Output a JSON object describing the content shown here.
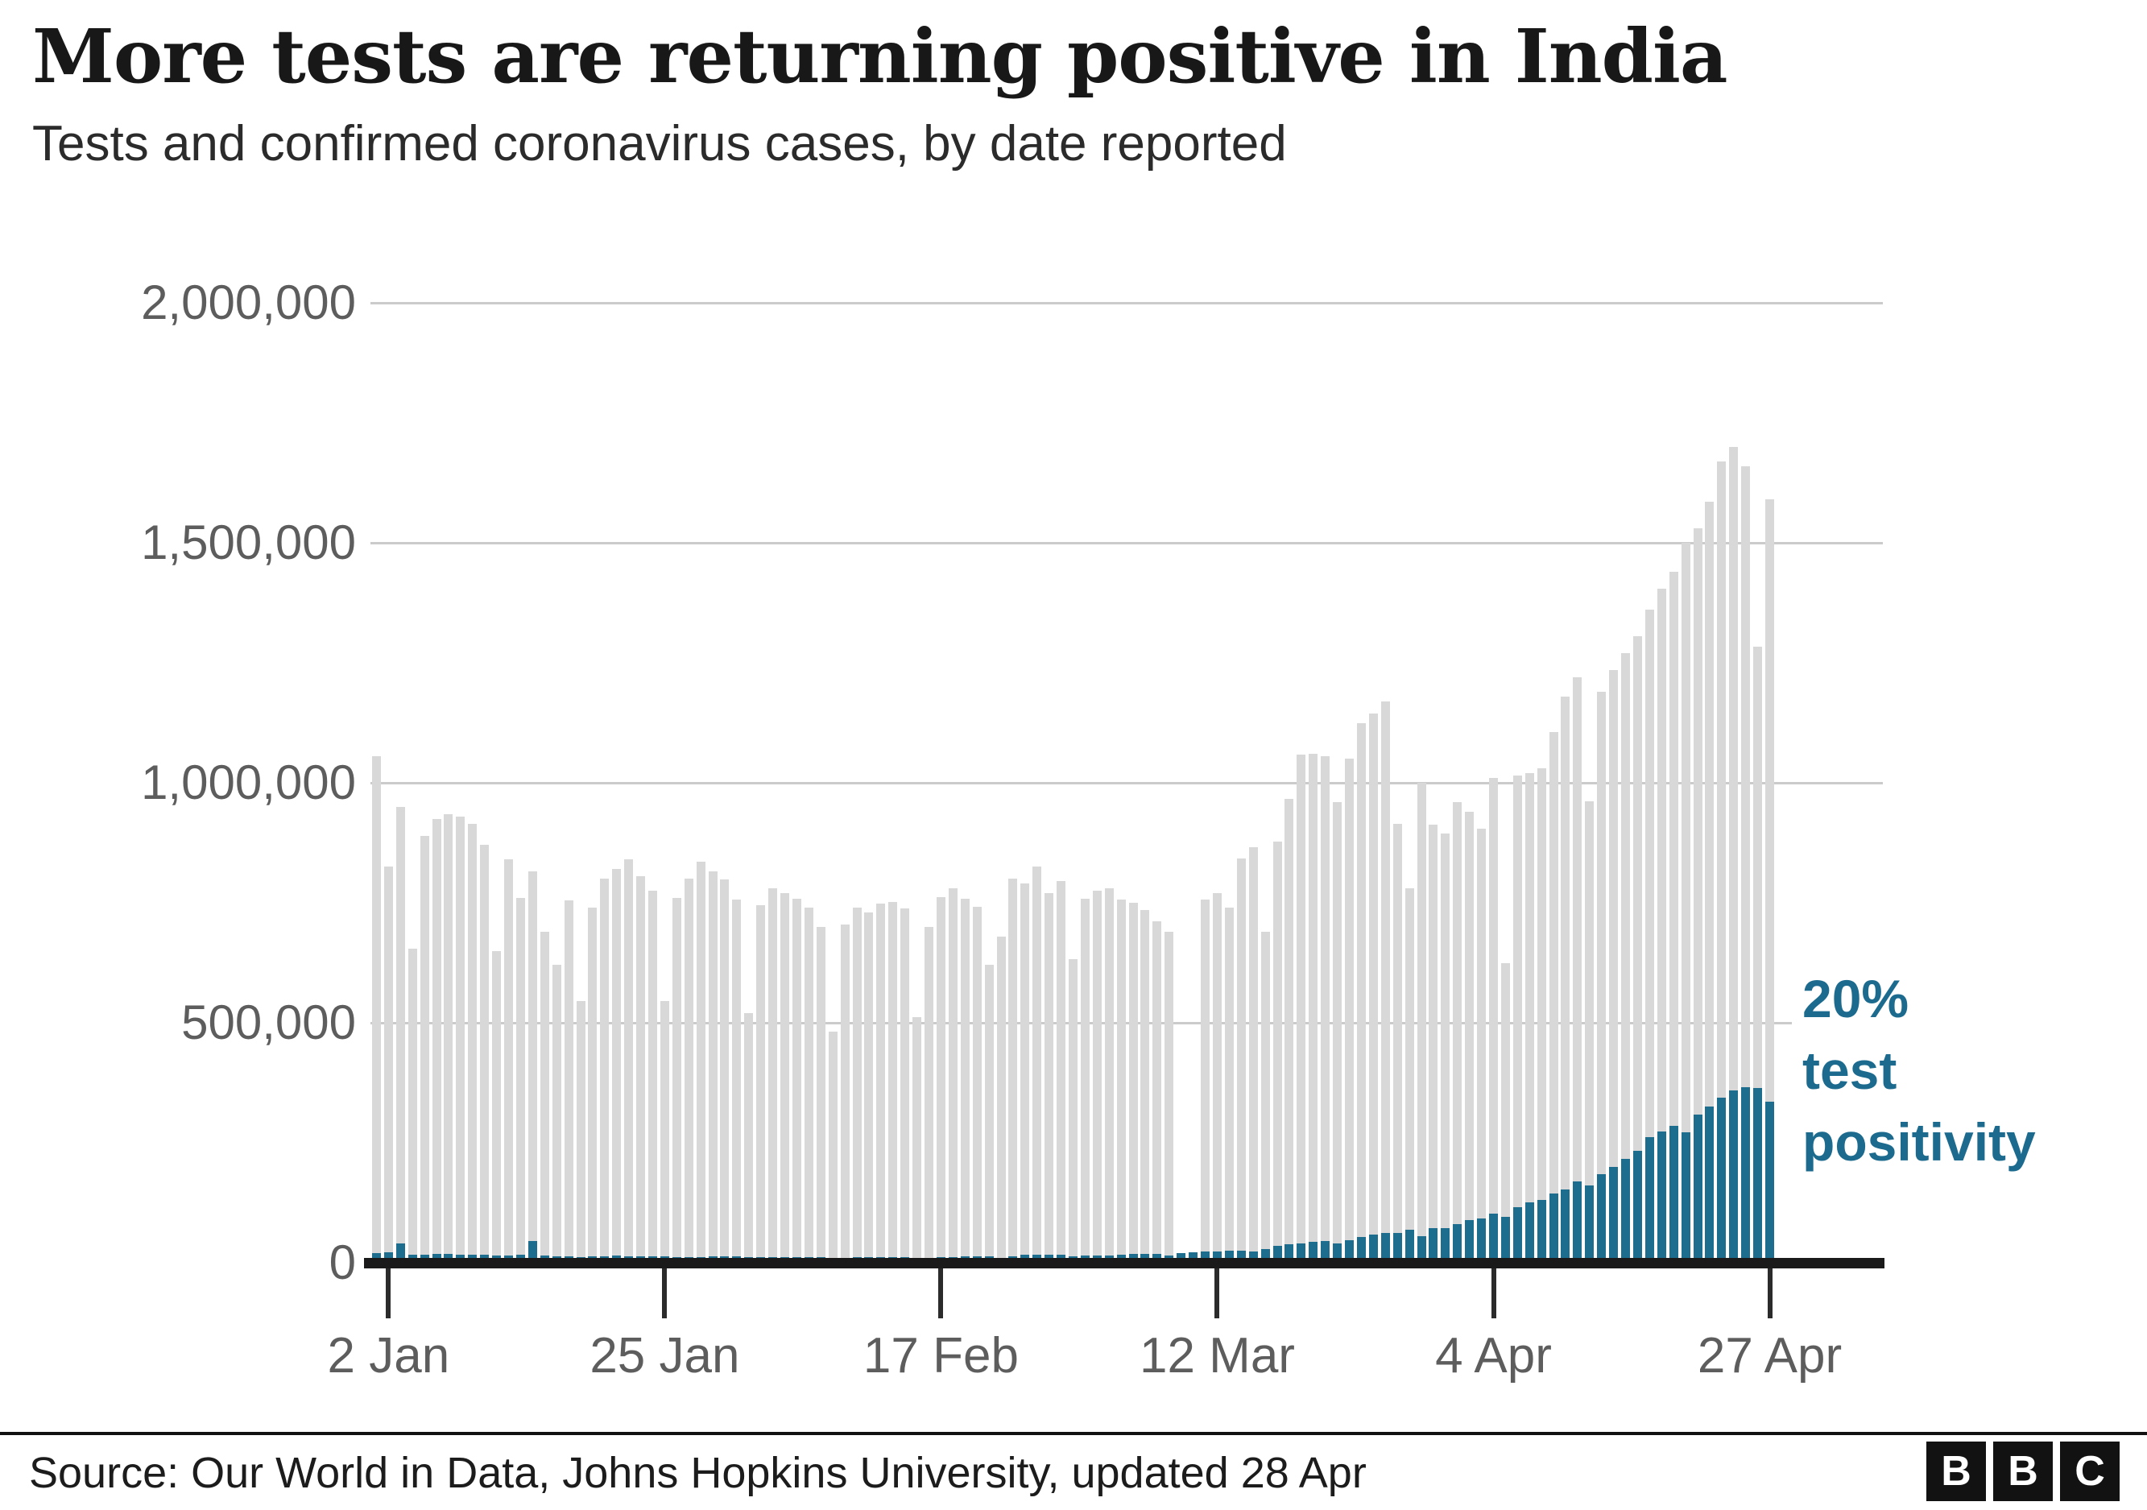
{
  "header": {
    "title": "More tests are returning positive in India",
    "subtitle": "Tests and confirmed coronavirus cases, by date reported"
  },
  "annotation": {
    "line1": "20%",
    "line2": "test",
    "line3": "positivity",
    "color": "#1c6b8e"
  },
  "footer": {
    "source": "Source: Our World in Data, Johns Hopkins University, updated 28 Apr",
    "logo_letters": [
      "B",
      "B",
      "C"
    ]
  },
  "colors": {
    "tests_bar": "#d8d8d8",
    "cases_bar": "#1d6d8f",
    "gridline": "#cbcbcb",
    "axis": "#1a1a1a",
    "tick_label": "#5d5d5d"
  },
  "chart_data": {
    "type": "bar",
    "title": "Tests and confirmed coronavirus cases, by date reported",
    "ylim": [
      0,
      2000000
    ],
    "grid": true,
    "legend_position": "none",
    "y_ticks": [
      0,
      500000,
      1000000,
      1500000,
      2000000
    ],
    "y_tick_labels": [
      "0",
      "500,000",
      "1,000,000",
      "1,500,000",
      "2,000,000"
    ],
    "x_tick_labels": [
      "2 Jan",
      "25 Jan",
      "17 Feb",
      "12 Mar",
      "4 Apr",
      "27 Apr"
    ],
    "x_tick_indices": [
      1,
      24,
      47,
      70,
      93,
      116
    ],
    "dates": [
      "1 Jan",
      "2 Jan",
      "3 Jan",
      "4 Jan",
      "5 Jan",
      "6 Jan",
      "7 Jan",
      "8 Jan",
      "9 Jan",
      "10 Jan",
      "11 Jan",
      "12 Jan",
      "13 Jan",
      "14 Jan",
      "15 Jan",
      "16 Jan",
      "17 Jan",
      "18 Jan",
      "19 Jan",
      "20 Jan",
      "21 Jan",
      "22 Jan",
      "23 Jan",
      "24 Jan",
      "25 Jan",
      "26 Jan",
      "27 Jan",
      "28 Jan",
      "29 Jan",
      "30 Jan",
      "31 Jan",
      "1 Feb",
      "2 Feb",
      "3 Feb",
      "4 Feb",
      "5 Feb",
      "6 Feb",
      "7 Feb",
      "8 Feb",
      "9 Feb",
      "10 Feb",
      "11 Feb",
      "12 Feb",
      "13 Feb",
      "14 Feb",
      "15 Feb",
      "16 Feb",
      "17 Feb",
      "18 Feb",
      "19 Feb",
      "20 Feb",
      "21 Feb",
      "22 Feb",
      "23 Feb",
      "24 Feb",
      "25 Feb",
      "26 Feb",
      "27 Feb",
      "28 Feb",
      "1 Mar",
      "2 Mar",
      "3 Mar",
      "4 Mar",
      "5 Mar",
      "6 Mar",
      "7 Mar",
      "8 Mar",
      "9 Mar",
      "10 Mar",
      "11 Mar",
      "12 Mar",
      "13 Mar",
      "14 Mar",
      "15 Mar",
      "16 Mar",
      "17 Mar",
      "18 Mar",
      "19 Mar",
      "20 Mar",
      "21 Mar",
      "22 Mar",
      "23 Mar",
      "24 Mar",
      "25 Mar",
      "26 Mar",
      "27 Mar",
      "28 Mar",
      "29 Mar",
      "30 Mar",
      "31 Mar",
      "1 Apr",
      "2 Apr",
      "3 Apr",
      "4 Apr",
      "5 Apr",
      "6 Apr",
      "7 Apr",
      "8 Apr",
      "9 Apr",
      "10 Apr",
      "11 Apr",
      "12 Apr",
      "13 Apr",
      "14 Apr",
      "15 Apr",
      "16 Apr",
      "17 Apr",
      "18 Apr",
      "19 Apr",
      "20 Apr",
      "21 Apr",
      "22 Apr",
      "23 Apr",
      "24 Apr",
      "25 Apr",
      "26 Apr",
      "27 Apr"
    ],
    "series": [
      {
        "name": "Tests",
        "color": "#d8d8d8",
        "values": [
          1055000,
          825000,
          950000,
          655000,
          890000,
          925000,
          935000,
          930000,
          915000,
          870000,
          650000,
          840000,
          760000,
          815000,
          690000,
          620000,
          755000,
          545000,
          740000,
          800000,
          820000,
          840000,
          805000,
          775000,
          545000,
          760000,
          800000,
          836000,
          815000,
          798000,
          756000,
          520000,
          745000,
          780000,
          770000,
          758000,
          740000,
          700000,
          482000,
          705000,
          740000,
          730000,
          748000,
          752000,
          738000,
          512000,
          700000,
          762000,
          780000,
          758000,
          742000,
          620000,
          680000,
          800000,
          790000,
          825000,
          770000,
          795000,
          632000,
          758000,
          775000,
          780000,
          757000,
          750000,
          735000,
          712000,
          690000,
          null,
          null,
          757000,
          770000,
          740000,
          843000,
          865000,
          690000,
          877000,
          967000,
          1058000,
          1060000,
          1056000,
          960000,
          1050000,
          1125000,
          1145000,
          1170000,
          915000,
          780000,
          1000000,
          912000,
          895000,
          960000,
          940000,
          905000,
          1010000,
          625000,
          1015000,
          1020000,
          1030000,
          1105000,
          1180000,
          1220000,
          962000,
          1190000,
          1235000,
          1270000,
          1305000,
          1360000,
          1405000,
          1440000,
          1500000,
          1530000,
          1585000,
          1670000,
          1700000,
          1660000,
          1283000,
          1590000
        ]
      },
      {
        "name": "Confirmed cases",
        "color": "#1d6d8f",
        "values": [
          20000,
          22000,
          40000,
          16000,
          16000,
          18000,
          18000,
          17000,
          16000,
          16000,
          15000,
          15000,
          16000,
          45000,
          15000,
          14000,
          14000,
          12000,
          14000,
          14000,
          15000,
          14000,
          14000,
          13000,
          13000,
          12000,
          12000,
          12000,
          13000,
          13000,
          13000,
          11000,
          11000,
          12000,
          12000,
          12000,
          12000,
          11000,
          9000,
          10000,
          11000,
          12000,
          12000,
          11000,
          11000,
          9000,
          10000,
          11000,
          12000,
          13000,
          13000,
          14000,
          10000,
          14000,
          16000,
          16000,
          16000,
          16000,
          14000,
          15000,
          15000,
          15000,
          17000,
          18000,
          18000,
          18000,
          15000,
          20000,
          22000,
          23000,
          24000,
          25000,
          26000,
          24000,
          28000,
          35000,
          39000,
          40000,
          43000,
          46000,
          40000,
          47000,
          53000,
          59000,
          62000,
          62000,
          68000,
          56000,
          72000,
          72000,
          81000,
          89000,
          93000,
          103000,
          96000,
          115000,
          126000,
          131000,
          145000,
          152000,
          169000,
          161000,
          185000,
          200000,
          217000,
          233000,
          261000,
          273000,
          286000,
          271000,
          309000,
          326000,
          344000,
          359000,
          366000,
          364000,
          336000
        ]
      }
    ]
  }
}
